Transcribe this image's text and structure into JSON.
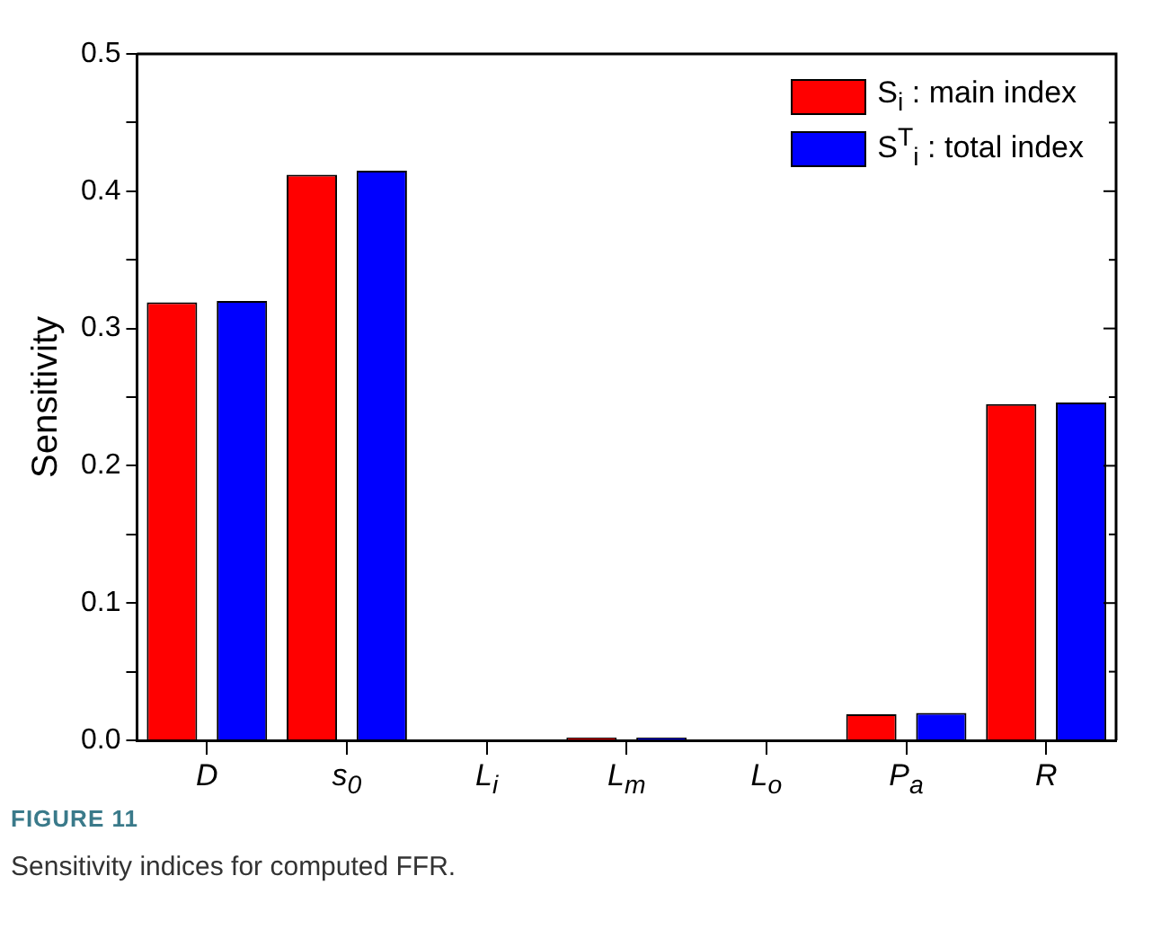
{
  "chart_data": {
    "type": "bar",
    "ylabel": "Sensitivity",
    "categories": [
      "D",
      "s$_{0}$",
      "L$_{i}$",
      "L$_{m}$",
      "L$_{o}$",
      "P$_{a}$",
      "R"
    ],
    "series": [
      {
        "name": "S$_{i}$ : main index",
        "color": "#ff0000",
        "values": [
          0.319,
          0.412,
          0,
          0.002,
          0,
          0.019,
          0.245
        ]
      },
      {
        "name": "S$^{T}$$_{i}$ : total index",
        "color": "#0000ff",
        "values": [
          0.32,
          0.415,
          0,
          0.002,
          0,
          0.02,
          0.246
        ]
      }
    ],
    "ylim": [
      0,
      0.5
    ],
    "yticks": [
      {
        "value": 0,
        "label": "0.0"
      },
      {
        "value": 0.05,
        "label": null
      },
      {
        "value": 0.1,
        "label": "0.1"
      },
      {
        "value": 0.15,
        "label": null
      },
      {
        "value": 0.2,
        "label": "0.2"
      },
      {
        "value": 0.25,
        "label": null
      },
      {
        "value": 0.3,
        "label": "0.3"
      },
      {
        "value": 0.35,
        "label": null
      },
      {
        "value": 0.4,
        "label": "0.4"
      },
      {
        "value": 0.45,
        "label": null
      },
      {
        "value": 0.5,
        "label": "0.5"
      }
    ],
    "legend": "top right",
    "annotations": [
      "FIGURE 11",
      "Sensitivity indices for computed FFR."
    ]
  }
}
